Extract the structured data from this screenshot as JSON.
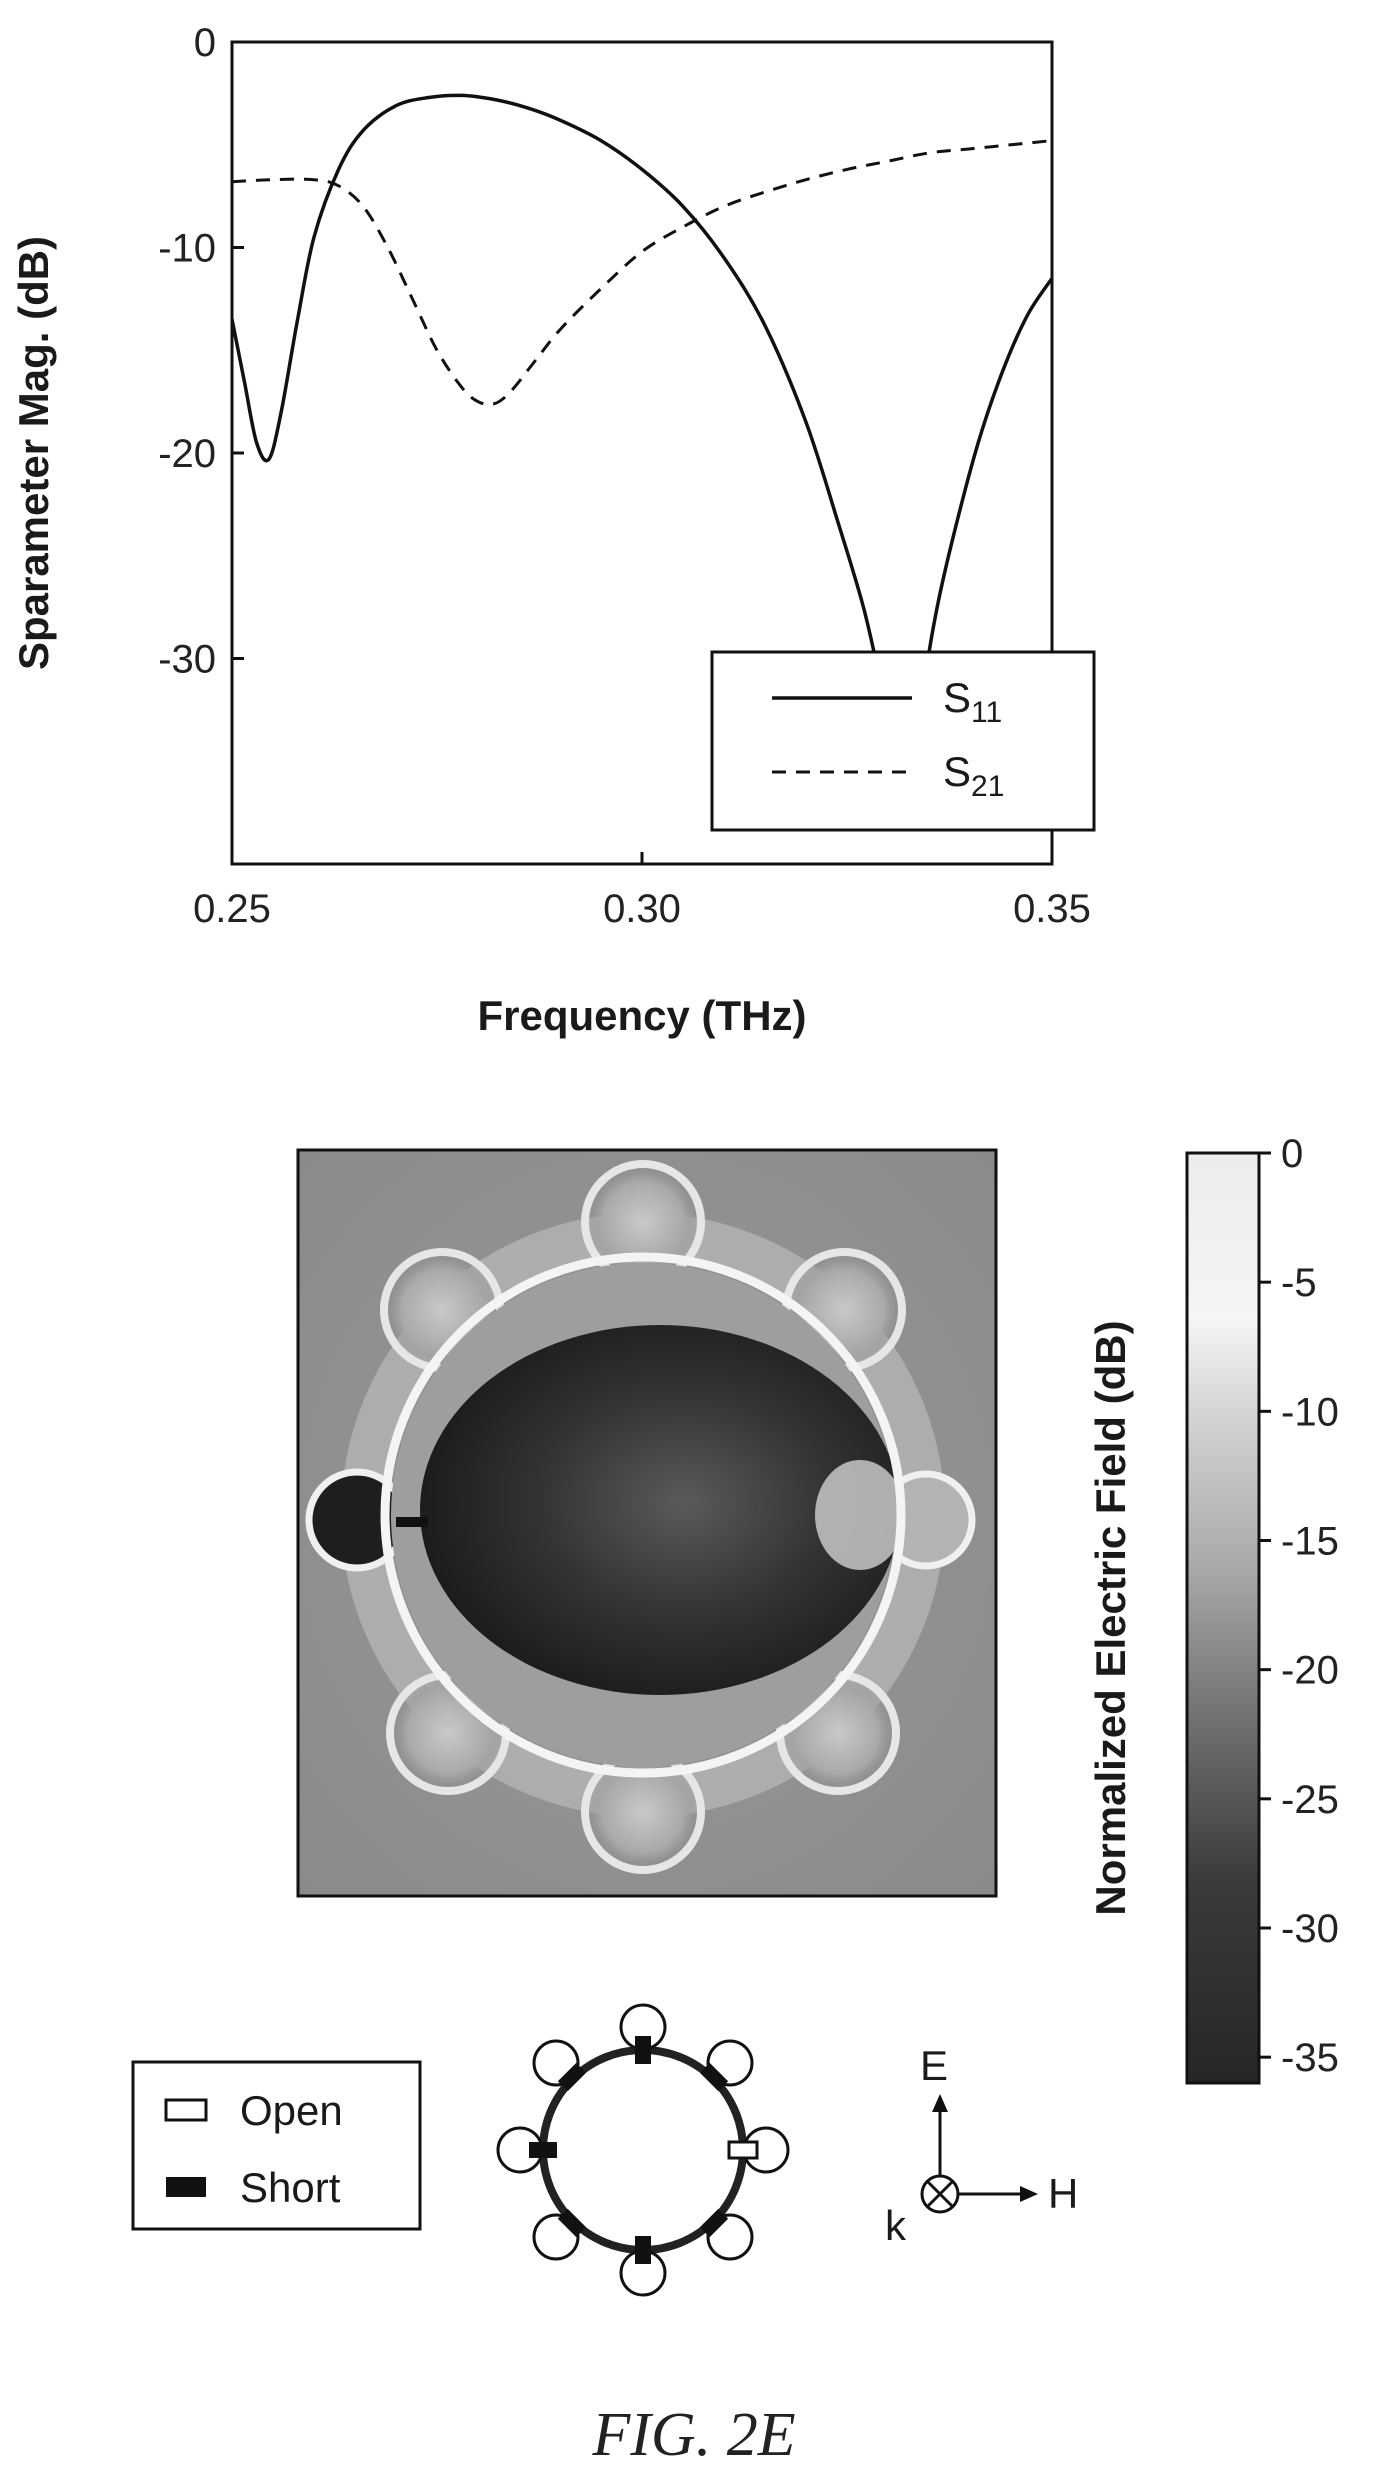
{
  "chart_data": [
    {
      "type": "line",
      "title": "",
      "xlabel": "Frequency (THz)",
      "ylabel": "Sparameter Mag. (dB)",
      "xlim": [
        0.25,
        0.35
      ],
      "ylim": [
        -40,
        0
      ],
      "x_ticks": [
        "0.25",
        "0.30",
        "0.35"
      ],
      "y_ticks": [
        "0",
        "-10",
        "-20",
        "-30"
      ],
      "grid": false,
      "legend_position": "bottom-right",
      "series": [
        {
          "name": "S11",
          "label_main": "S",
          "label_sub": "11",
          "style": "solid",
          "x": [
            0.25,
            0.2515,
            0.253,
            0.2545,
            0.256,
            0.258,
            0.26,
            0.263,
            0.266,
            0.27,
            0.274,
            0.278,
            0.282,
            0.286,
            0.29,
            0.295,
            0.3,
            0.305,
            0.31,
            0.315,
            0.32,
            0.324,
            0.327,
            0.329,
            0.3305,
            0.3315,
            0.3335,
            0.3345,
            0.336,
            0.338,
            0.341,
            0.344,
            0.347,
            0.35
          ],
          "y": [
            -13.5,
            -16.5,
            -19.5,
            -20.3,
            -18.0,
            -13.5,
            -9.5,
            -6.2,
            -4.3,
            -3.1,
            -2.7,
            -2.6,
            -2.8,
            -3.2,
            -3.8,
            -4.8,
            -6.2,
            -8.0,
            -10.5,
            -13.8,
            -18.5,
            -23.5,
            -27.5,
            -31.0,
            -34.0,
            -36.0,
            -34.5,
            -31.0,
            -27.5,
            -24.0,
            -19.5,
            -16.0,
            -13.3,
            -11.5
          ]
        },
        {
          "name": "S21",
          "label_main": "S",
          "label_sub": "21",
          "style": "dashed",
          "x": [
            0.25,
            0.255,
            0.26,
            0.263,
            0.266,
            0.269,
            0.272,
            0.275,
            0.278,
            0.28,
            0.282,
            0.284,
            0.287,
            0.29,
            0.295,
            0.3,
            0.305,
            0.31,
            0.315,
            0.32,
            0.325,
            0.33,
            0.335,
            0.34,
            0.345,
            0.35
          ],
          "y": [
            -6.8,
            -6.7,
            -6.7,
            -7.0,
            -8.0,
            -10.0,
            -12.5,
            -15.0,
            -16.8,
            -17.5,
            -17.6,
            -17.0,
            -15.5,
            -14.0,
            -12.0,
            -10.2,
            -9.0,
            -8.0,
            -7.3,
            -6.7,
            -6.2,
            -5.8,
            -5.4,
            -5.2,
            -5.0,
            -4.8
          ]
        }
      ]
    },
    {
      "type": "heatmap",
      "title": "",
      "colorbar_label": "Normalized Electric Field (dB)",
      "colorbar_range": [
        -36,
        0
      ],
      "colorbar_ticks": [
        "0",
        "-5",
        "-10",
        "-15",
        "-20",
        "-25",
        "-30",
        "-35"
      ],
      "colorscale": [
        "#2a2a2a",
        "#555555",
        "#8c8c8c",
        "#b5b5b5",
        "#d8d8d8",
        "#f2f2f2"
      ]
    }
  ],
  "legend_boxes": {
    "open_label": "Open",
    "short_label": "Short"
  },
  "orientation": {
    "e_label": "E",
    "h_label": "H",
    "k_label": "k"
  },
  "figure_caption": "FIG. 2E"
}
